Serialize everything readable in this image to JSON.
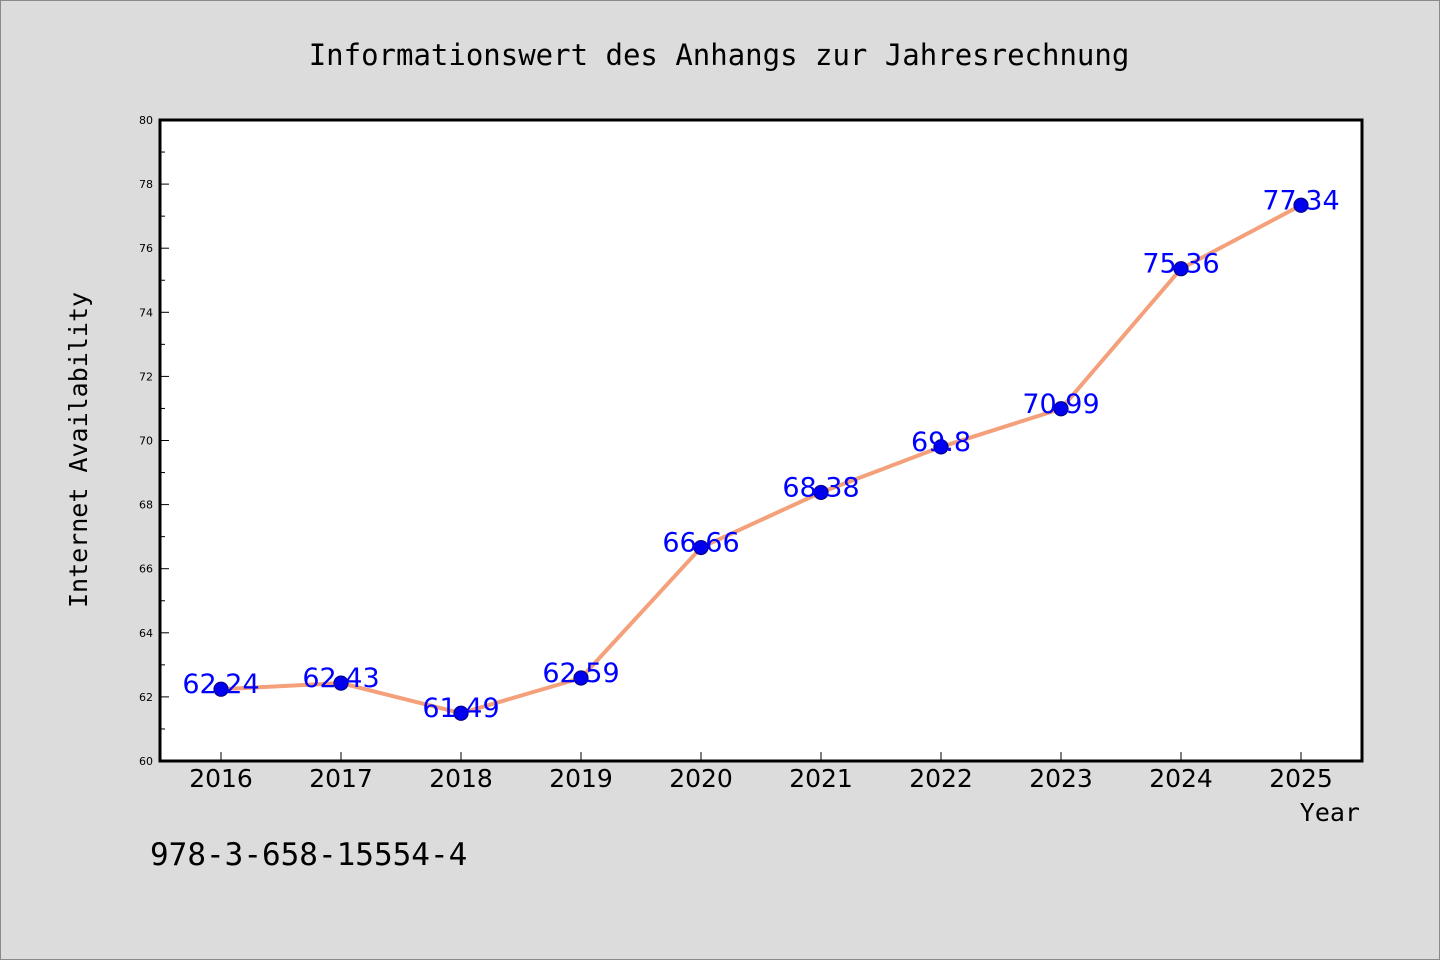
{
  "chart_data": {
    "type": "line",
    "title": "Informationswert des Anhangs zur Jahresrechnung",
    "xlabel": "Year",
    "ylabel": "Internet Availability",
    "categories": [
      "2016",
      "2017",
      "2018",
      "2019",
      "2020",
      "2021",
      "2022",
      "2023",
      "2024",
      "2025"
    ],
    "series": [
      {
        "values": [
          62.24,
          62.43,
          61.49,
          62.59,
          66.66,
          68.38,
          69.8,
          70.99,
          75.36,
          77.34
        ]
      }
    ],
    "data_labels": [
      "62.24",
      "62.43",
      "61.49",
      "62.59",
      "66.66",
      "68.38",
      "69.8",
      "70.99",
      "75.36",
      "77.34"
    ],
    "ylim": [
      60,
      80
    ],
    "yticks": [
      "60",
      "62",
      "64",
      "66",
      "68",
      "70",
      "72",
      "74",
      "76",
      "78",
      "80"
    ],
    "grid": false,
    "legend": "none",
    "colors": {
      "line": "#f4a07a",
      "marker": "#0000ee",
      "marker_edge": "#00008b",
      "data_label": "#0000ff",
      "plot_background": "#ffffff",
      "figure_background": "#dcdcdc"
    }
  },
  "footer": {
    "isbn": "978-3-658-15554-4"
  }
}
